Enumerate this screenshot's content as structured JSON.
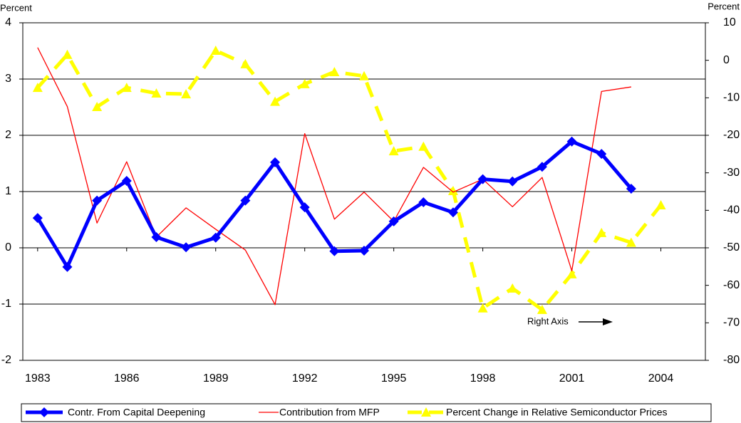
{
  "chart_data": {
    "type": "line",
    "y_label": "Percent",
    "y2_label": "Percent",
    "x": [
      1983,
      1984,
      1985,
      1986,
      1987,
      1988,
      1989,
      1990,
      1991,
      1992,
      1993,
      1994,
      1995,
      1996,
      1997,
      1998,
      1999,
      2000,
      2001,
      2002,
      2003,
      2004
    ],
    "xlim": [
      1982.5,
      2005.5
    ],
    "xticks": [
      1983,
      1986,
      1989,
      1992,
      1995,
      1998,
      2001,
      2004
    ],
    "ylim": [
      -2,
      4
    ],
    "yticks": [
      -2,
      -1,
      0,
      1,
      2,
      3,
      4
    ],
    "y2lim": [
      -80,
      10
    ],
    "y2ticks": [
      -80,
      -70,
      -60,
      -50,
      -40,
      -30,
      -20,
      -10,
      0,
      10
    ],
    "grid": true,
    "annotation": "Right Axis",
    "series": [
      {
        "name": "Contr. From Capital Deepening",
        "color": "#0000ff",
        "marker": "diamond",
        "dashed": false,
        "width": 5,
        "values": [
          0.53,
          -0.34,
          0.84,
          1.19,
          0.19,
          0.01,
          0.18,
          0.84,
          1.52,
          0.72,
          -0.06,
          -0.05,
          0.47,
          0.81,
          0.63,
          1.22,
          1.18,
          1.44,
          1.89,
          1.67,
          1.05,
          null
        ]
      },
      {
        "name": "Contribution from MFP",
        "color": "#ff0000",
        "marker": "none",
        "dashed": false,
        "width": 1.3,
        "values": [
          3.56,
          2.51,
          0.44,
          1.53,
          0.19,
          0.71,
          0.33,
          -0.04,
          -1.01,
          2.03,
          0.51,
          0.99,
          0.47,
          1.43,
          0.99,
          1.22,
          0.73,
          1.25,
          -0.41,
          2.78,
          2.86,
          null
        ]
      },
      {
        "name": "Percent Change in Relative Semiconductor Prices",
        "color": "#ffff00",
        "marker": "triangle",
        "dashed": true,
        "width": 5,
        "axis": "y2",
        "values": [
          -7.3,
          1.5,
          -12.4,
          -7.3,
          -8.8,
          -9,
          2.6,
          -1,
          -11,
          -6.3,
          -3.1,
          -4.2,
          -24.2,
          -23,
          -34.8,
          -66.1,
          -60.8,
          -66.5,
          -57,
          -46,
          -48.6,
          -38.6
        ]
      }
    ]
  }
}
